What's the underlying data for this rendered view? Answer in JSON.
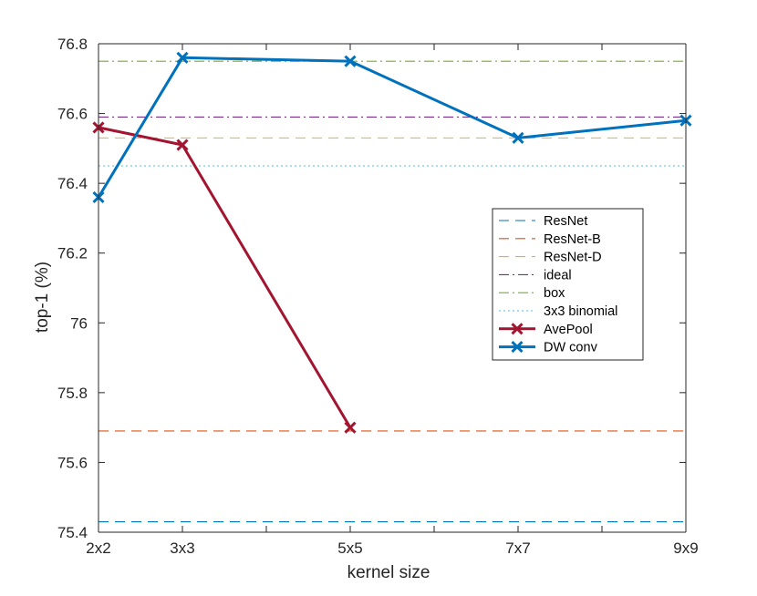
{
  "chart_data": {
    "type": "line",
    "xlabel": "kernel size",
    "ylabel": "top-1 (%)",
    "xlim": [
      2,
      9
    ],
    "ylim": [
      75.4,
      76.8
    ],
    "x_ticks": [
      2,
      3,
      4,
      5,
      6,
      7,
      8,
      9
    ],
    "x_tick_labels": [
      "2x2",
      "3x3",
      "",
      "5x5",
      "",
      "7x7",
      "",
      "9x9"
    ],
    "y_ticks": [
      75.4,
      75.6,
      75.8,
      76.0,
      76.2,
      76.4,
      76.6,
      76.8
    ],
    "y_tick_labels": [
      "75.4",
      "75.6",
      "75.8",
      "76",
      "76.2",
      "76.4",
      "76.6",
      "76.8"
    ],
    "baselines": [
      {
        "name": "ResNet",
        "value": 75.43,
        "color": "#0072bd",
        "dash": "dashed"
      },
      {
        "name": "ResNet-B",
        "value": 75.69,
        "color": "#d95319",
        "dash": "dashed"
      },
      {
        "name": "ResNet-D",
        "value": 76.53,
        "color": "#edb120",
        "dash": "dashed"
      },
      {
        "name": "ideal",
        "value": 76.59,
        "color": "#7e2f8e",
        "dash": "dashdot"
      },
      {
        "name": "box",
        "value": 76.75,
        "color": "#77ac30",
        "dash": "dashdot"
      },
      {
        "name": "3x3 binomial",
        "value": 76.45,
        "color": "#4dbeee",
        "dash": "dotted"
      }
    ],
    "series": [
      {
        "name": "AvePool",
        "color": "#a2142f",
        "x": [
          2,
          3,
          5
        ],
        "values": [
          76.56,
          76.51,
          75.7
        ]
      },
      {
        "name": "DW conv",
        "color": "#0072bd",
        "x": [
          2,
          3,
          5,
          7,
          9
        ],
        "values": [
          76.36,
          76.76,
          76.75,
          76.53,
          76.58
        ]
      }
    ],
    "legend": {
      "position": "right",
      "entries": [
        "ResNet",
        "ResNet-B",
        "ResNet-D",
        "ideal",
        "box",
        "3x3 binomial",
        "AvePool",
        "DW conv"
      ]
    }
  }
}
